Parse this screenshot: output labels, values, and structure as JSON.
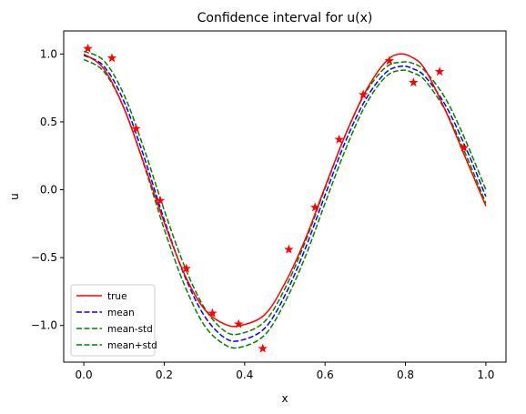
{
  "chart_data": {
    "type": "line",
    "title": "Confidence interval for u(x)",
    "xlabel": "x",
    "ylabel": "u",
    "xlim": [
      -0.05,
      1.05
    ],
    "ylim": [
      -1.27,
      1.17
    ],
    "xticks": [
      0.0,
      0.2,
      0.4,
      0.6,
      0.8,
      1.0
    ],
    "xtick_labels": [
      "0.0",
      "0.2",
      "0.4",
      "0.6",
      "0.8",
      "1.0"
    ],
    "yticks": [
      -1.0,
      -0.5,
      0.0,
      0.5,
      1.0
    ],
    "ytick_labels": [
      "−1.0",
      "−0.5",
      "0.0",
      "0.5",
      "1.0"
    ],
    "grid": false,
    "legend_position": "lower-left",
    "series": [
      {
        "name": "true",
        "style": "solid",
        "color": "#ff0000",
        "x": [
          0.0,
          0.05,
          0.1,
          0.15,
          0.2,
          0.25,
          0.3,
          0.35,
          0.39,
          0.45,
          0.5,
          0.55,
          0.6,
          0.65,
          0.7,
          0.75,
          0.785,
          0.82,
          0.85,
          0.9,
          0.95,
          1.0
        ],
        "y": [
          1.0,
          0.89,
          0.6,
          0.19,
          -0.24,
          -0.62,
          -0.88,
          -0.99,
          -1.0,
          -0.92,
          -0.69,
          -0.37,
          0.02,
          0.4,
          0.72,
          0.94,
          1.0,
          0.97,
          0.88,
          0.58,
          0.23,
          -0.12
        ]
      },
      {
        "name": "mean",
        "style": "dashed",
        "color": "#0000ff",
        "x": [
          0.0,
          0.05,
          0.1,
          0.15,
          0.2,
          0.25,
          0.3,
          0.35,
          0.39,
          0.45,
          0.5,
          0.55,
          0.6,
          0.65,
          0.7,
          0.75,
          0.79,
          0.82,
          0.85,
          0.9,
          0.95,
          1.0
        ],
        "y": [
          0.99,
          0.91,
          0.65,
          0.24,
          -0.22,
          -0.63,
          -0.93,
          -1.09,
          -1.11,
          -1.02,
          -0.78,
          -0.44,
          -0.04,
          0.35,
          0.66,
          0.86,
          0.91,
          0.89,
          0.83,
          0.62,
          0.31,
          -0.05
        ]
      },
      {
        "name": "mean-std",
        "style": "dashed",
        "color": "#008000",
        "x": [
          0.0,
          0.05,
          0.1,
          0.15,
          0.2,
          0.25,
          0.3,
          0.35,
          0.39,
          0.45,
          0.5,
          0.55,
          0.6,
          0.65,
          0.7,
          0.75,
          0.79,
          0.82,
          0.85,
          0.9,
          0.95,
          1.0
        ],
        "y": [
          0.96,
          0.87,
          0.6,
          0.18,
          -0.29,
          -0.7,
          -1.0,
          -1.14,
          -1.16,
          -1.07,
          -0.83,
          -0.5,
          -0.1,
          0.29,
          0.62,
          0.83,
          0.88,
          0.86,
          0.8,
          0.58,
          0.26,
          -0.1
        ]
      },
      {
        "name": "mean+std",
        "style": "dashed",
        "color": "#008000",
        "x": [
          0.0,
          0.05,
          0.1,
          0.15,
          0.2,
          0.25,
          0.3,
          0.35,
          0.39,
          0.45,
          0.5,
          0.55,
          0.6,
          0.65,
          0.7,
          0.75,
          0.79,
          0.82,
          0.85,
          0.9,
          0.95,
          1.0
        ],
        "y": [
          1.02,
          0.95,
          0.7,
          0.3,
          -0.15,
          -0.56,
          -0.87,
          -1.04,
          -1.06,
          -0.97,
          -0.73,
          -0.39,
          0.01,
          0.4,
          0.71,
          0.9,
          0.94,
          0.93,
          0.87,
          0.67,
          0.36,
          0.0
        ]
      }
    ],
    "observations": {
      "marker": "star",
      "color": "#ff0000",
      "x": [
        0.01,
        0.07,
        0.13,
        0.19,
        0.255,
        0.32,
        0.385,
        0.445,
        0.51,
        0.575,
        0.635,
        0.695,
        0.76,
        0.82,
        0.885,
        0.945
      ],
      "y": [
        1.04,
        0.97,
        0.45,
        -0.08,
        -0.58,
        -0.91,
        -0.99,
        -1.17,
        -0.44,
        -0.13,
        0.37,
        0.7,
        0.95,
        0.79,
        0.87,
        0.31
      ]
    }
  }
}
